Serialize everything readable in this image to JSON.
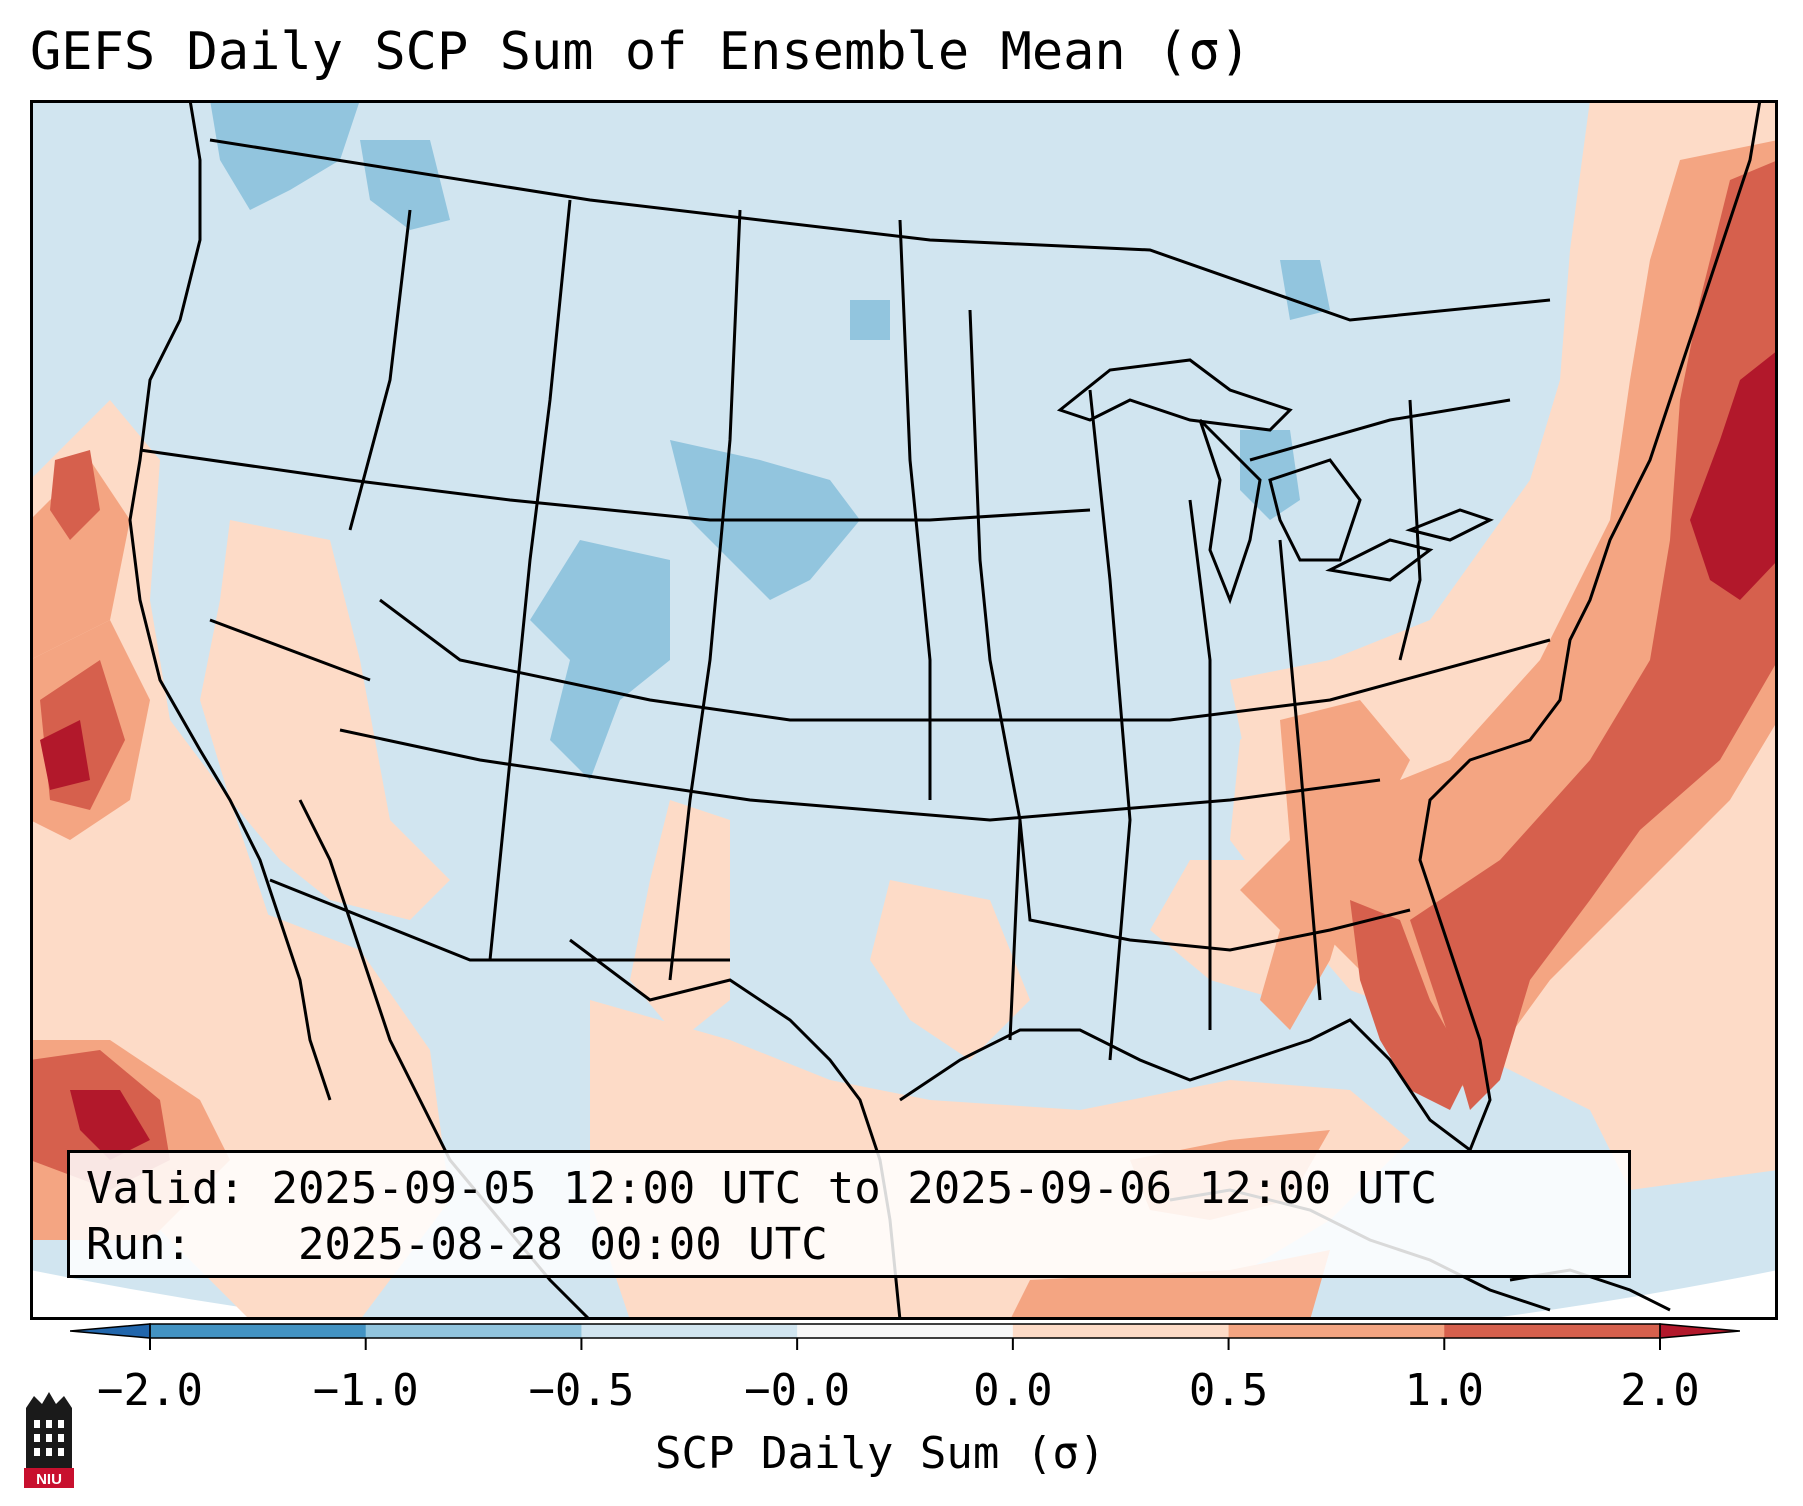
{
  "title": "GEFS Daily SCP Sum of Ensemble Mean (σ)",
  "info": {
    "valid_label": "Valid:",
    "valid_value": "2025-09-05 12:00 UTC to 2025-09-06 12:00 UTC",
    "run_label": "Run:",
    "run_value": "2025-08-28 00:00 UTC"
  },
  "colorbar": {
    "label": "SCP Daily Sum (σ)",
    "ticks": [
      "−2.0",
      "−1.0",
      "−0.5",
      "−0.0",
      "0.0",
      "0.5",
      "1.0",
      "2.0"
    ],
    "bins": [
      {
        "range": "-2.0 to -1.0",
        "color": "#4393c3"
      },
      {
        "range": "-1.0 to -0.5",
        "color": "#92c5de"
      },
      {
        "range": "-0.5 to -0.0",
        "color": "#d1e5f0"
      },
      {
        "range": "-0.0 to 0.0",
        "color": "#f7f7f7"
      },
      {
        "range": "0.0 to 0.5",
        "color": "#fddbc7"
      },
      {
        "range": "0.5 to 1.0",
        "color": "#f4a582"
      },
      {
        "range": "1.0 to 2.0",
        "color": "#d6604d"
      }
    ],
    "under_color": "#2166ac",
    "over_color": "#b2182b"
  },
  "map": {
    "background_color": "#d1e5f0",
    "anomaly_regions": [
      {
        "name": "Northeast US coast and Atlantic",
        "category": "1.0 to 2.0"
      },
      {
        "name": "Southeast US and Florida",
        "category": "1.0 to 2.0"
      },
      {
        "name": "Pacific off Northern California",
        "category": "1.0 to 2.0"
      },
      {
        "name": "Gulf of Mexico",
        "category": "0.0 to 0.5"
      },
      {
        "name": "Southwest US",
        "category": "0.0 to 0.5"
      },
      {
        "name": "Colorado and Plains",
        "category": "-1.0 to -0.5"
      }
    ]
  },
  "logo": {
    "text": "NIU"
  }
}
